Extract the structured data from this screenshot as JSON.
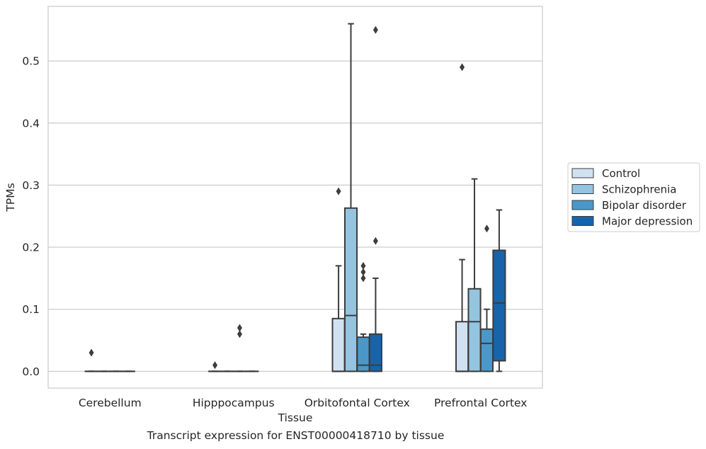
{
  "chart_data": {
    "type": "boxplot",
    "title": "",
    "caption": "Transcript expression for ENST00000418710 by tissue",
    "xlabel": "Tissue",
    "ylabel": "TPMs",
    "ylim": [
      -0.027,
      0.588
    ],
    "yticks": [
      0.0,
      0.1,
      0.2,
      0.3,
      0.4,
      0.5
    ],
    "ytick_labels": [
      "0.0",
      "0.1",
      "0.2",
      "0.3",
      "0.4",
      "0.5"
    ],
    "grid": "horizontal",
    "legend_position": "right",
    "categories": [
      "Cerebellum",
      "Hipppocampus",
      "Orbitofontal Cortex",
      "Prefrontal Cortex"
    ],
    "series": [
      {
        "name": "Control",
        "color": "#d0e1f2",
        "boxes": [
          {
            "whislo": 0,
            "q1": 0,
            "med": 0,
            "q3": 0,
            "whishi": 0,
            "fliers": [
              0.03
            ]
          },
          {
            "whislo": 0,
            "q1": 0,
            "med": 0,
            "q3": 0,
            "whishi": 0,
            "fliers": [
              0.01
            ]
          },
          {
            "whislo": 0,
            "q1": 0,
            "med": 0,
            "q3": 0.085,
            "whishi": 0.17,
            "fliers": [
              0.29
            ]
          },
          {
            "whislo": 0,
            "q1": 0,
            "med": 0,
            "q3": 0.08,
            "whishi": 0.18,
            "fliers": [
              0.49
            ]
          }
        ]
      },
      {
        "name": "Schizophrenia",
        "color": "#94c4df",
        "boxes": [
          {
            "whislo": 0,
            "q1": 0,
            "med": 0,
            "q3": 0,
            "whishi": 0,
            "fliers": []
          },
          {
            "whislo": 0,
            "q1": 0,
            "med": 0,
            "q3": 0,
            "whishi": 0,
            "fliers": []
          },
          {
            "whislo": 0,
            "q1": 0,
            "med": 0.09,
            "q3": 0.263,
            "whishi": 0.56,
            "fliers": []
          },
          {
            "whislo": 0,
            "q1": 0,
            "med": 0.08,
            "q3": 0.133,
            "whishi": 0.31,
            "fliers": []
          }
        ]
      },
      {
        "name": "Bipolar disorder",
        "color": "#4a98c9",
        "boxes": [
          {
            "whislo": 0,
            "q1": 0,
            "med": 0,
            "q3": 0,
            "whishi": 0,
            "fliers": []
          },
          {
            "whislo": 0,
            "q1": 0,
            "med": 0,
            "q3": 0,
            "whishi": 0,
            "fliers": [
              0.06,
              0.07
            ]
          },
          {
            "whislo": 0,
            "q1": 0,
            "med": 0.01,
            "q3": 0.055,
            "whishi": 0.06,
            "fliers": [
              0.15,
              0.16,
              0.17
            ]
          },
          {
            "whislo": 0,
            "q1": 0,
            "med": 0.045,
            "q3": 0.068,
            "whishi": 0.1,
            "fliers": [
              0.23
            ]
          }
        ]
      },
      {
        "name": "Major depression",
        "color": "#1764ab",
        "boxes": [
          {
            "whislo": 0,
            "q1": 0,
            "med": 0,
            "q3": 0,
            "whishi": 0,
            "fliers": []
          },
          {
            "whislo": 0,
            "q1": 0,
            "med": 0,
            "q3": 0,
            "whishi": 0,
            "fliers": []
          },
          {
            "whislo": 0,
            "q1": 0,
            "med": 0.01,
            "q3": 0.06,
            "whishi": 0.15,
            "fliers": [
              0.21,
              0.55
            ]
          },
          {
            "whislo": 0,
            "q1": 0.017,
            "med": 0.11,
            "q3": 0.195,
            "whishi": 0.26,
            "fliers": []
          }
        ]
      }
    ]
  }
}
